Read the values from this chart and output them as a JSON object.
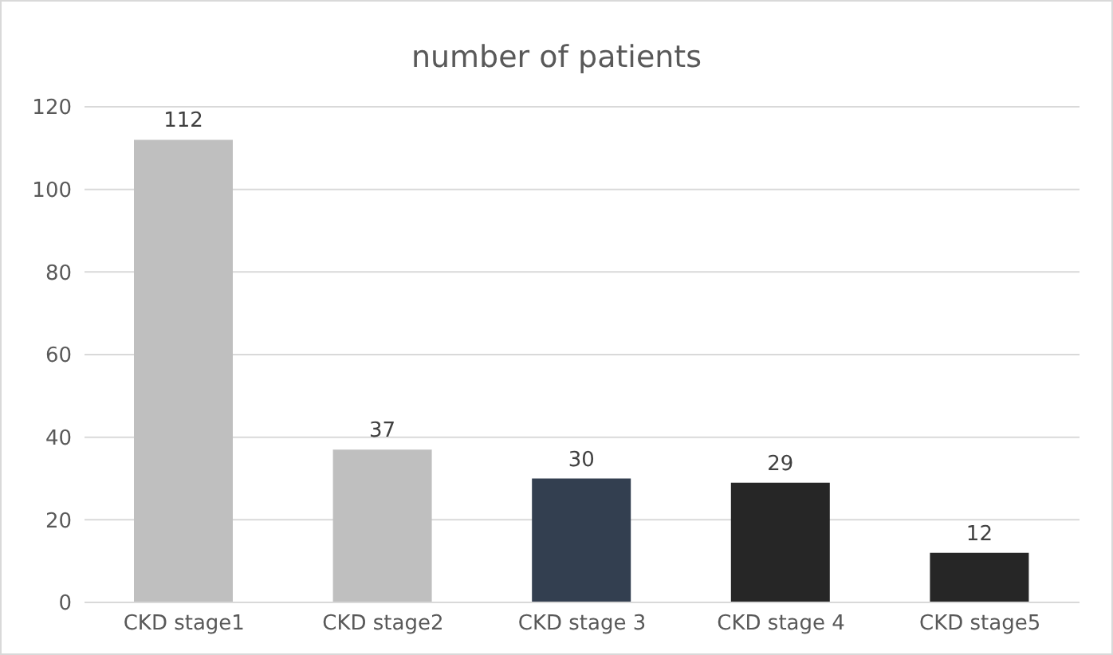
{
  "chart_data": {
    "type": "bar",
    "title": "number of patients",
    "categories": [
      "CKD stage1",
      "CKD stage2",
      "CKD stage 3",
      "CKD stage 4",
      "CKD stage5"
    ],
    "values": [
      112,
      37,
      30,
      29,
      12
    ],
    "colors": [
      "#bfbfbf",
      "#bfbfbf",
      "#333f50",
      "#262626",
      "#262626"
    ],
    "ylim": [
      0,
      120
    ],
    "yticks": [
      0,
      20,
      40,
      60,
      80,
      100,
      120
    ],
    "grid": "y",
    "data_labels": true
  }
}
